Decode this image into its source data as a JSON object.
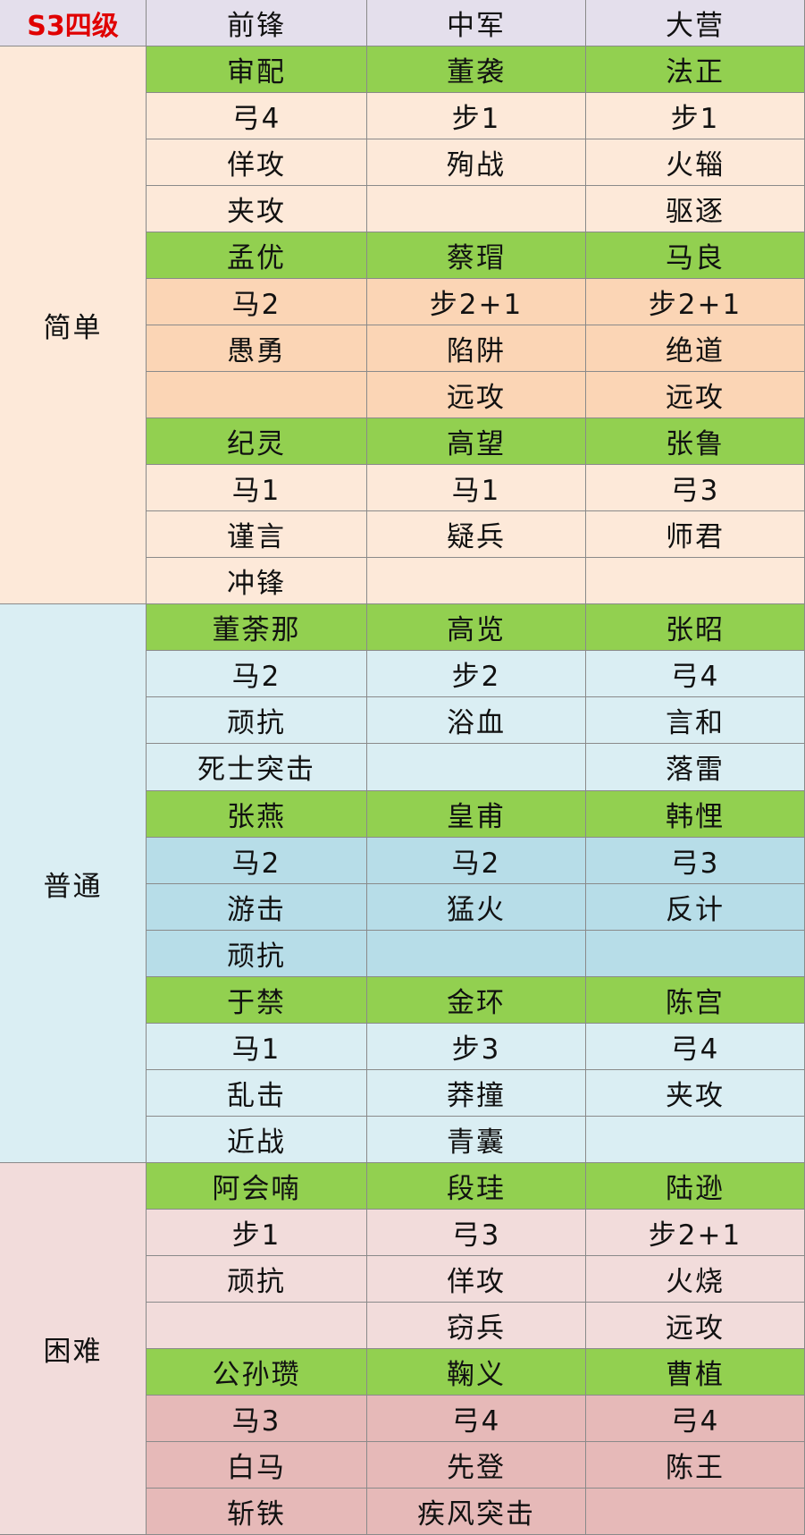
{
  "table": {
    "corner": "S3四级",
    "columns": [
      "前锋",
      "中军",
      "大营"
    ],
    "groups": [
      {
        "label": "简单",
        "blocks": [
          [
            [
              "审配",
              "董袭",
              "法正"
            ],
            [
              "弓4",
              "步1",
              "步1"
            ],
            [
              "佯攻",
              "殉战",
              "火辎"
            ],
            [
              "夹攻",
              null,
              "驱逐"
            ]
          ],
          [
            [
              "孟优",
              "蔡瑁",
              "马良"
            ],
            [
              "马2",
              "步2+1",
              "步2+1"
            ],
            [
              "愚勇",
              "陷阱",
              "绝道"
            ],
            [
              null,
              "远攻",
              "远攻"
            ]
          ],
          [
            [
              "纪灵",
              "高望",
              "张鲁"
            ],
            [
              "马1",
              "马1",
              "弓3"
            ],
            [
              "谨言",
              "疑兵",
              "师君"
            ],
            [
              "冲锋",
              null,
              null
            ]
          ]
        ]
      },
      {
        "label": "普通",
        "blocks": [
          [
            [
              "董荼那",
              "高览",
              "张昭"
            ],
            [
              "马2",
              "步2",
              "弓4"
            ],
            [
              "顽抗",
              "浴血",
              "言和"
            ],
            [
              "死士突击",
              null,
              "落雷"
            ]
          ],
          [
            [
              "张燕",
              "皇甫",
              "韩悝"
            ],
            [
              "马2",
              "马2",
              "弓3"
            ],
            [
              "游击",
              "猛火",
              "反计"
            ],
            [
              "顽抗",
              null,
              null
            ]
          ],
          [
            [
              "于禁",
              "金环",
              "陈宫"
            ],
            [
              "马1",
              "步3",
              "弓4"
            ],
            [
              "乱击",
              "莽撞",
              "夹攻"
            ],
            [
              "近战",
              "青囊",
              null
            ]
          ]
        ]
      },
      {
        "label": "困难",
        "blocks": [
          [
            [
              "阿会喃",
              "段珪",
              "陆逊"
            ],
            [
              "步1",
              "弓3",
              "步2+1"
            ],
            [
              "顽抗",
              "佯攻",
              "火烧"
            ],
            [
              null,
              "窃兵",
              "远攻"
            ]
          ],
          [
            [
              "公孙瓒",
              "鞠义",
              "曹植"
            ],
            [
              "马3",
              "弓4",
              "弓4"
            ],
            [
              "白马",
              "先登",
              "陈王"
            ],
            [
              "斩铁",
              "疾风突击",
              null
            ]
          ]
        ]
      }
    ]
  }
}
